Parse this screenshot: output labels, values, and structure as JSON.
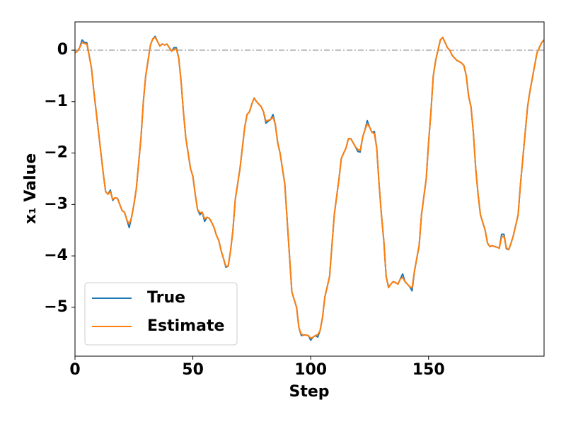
{
  "chart_data": {
    "type": "line",
    "xlabel": "Step",
    "ylabel": "x₁ Value",
    "xlim": [
      0,
      199
    ],
    "ylim": [
      -5.95,
      0.55
    ],
    "xticks": [
      0,
      50,
      100,
      150
    ],
    "yticks": [
      {
        "value": -5,
        "label": "−5"
      },
      {
        "value": -4,
        "label": "−4"
      },
      {
        "value": -3,
        "label": "−3"
      },
      {
        "value": -2,
        "label": "−2"
      },
      {
        "value": -1,
        "label": "−1"
      },
      0
    ],
    "hline": 0,
    "hline_color": "#808080",
    "legend": "lower left",
    "x": [
      0,
      1,
      2,
      3,
      4,
      5,
      6,
      7,
      8,
      9,
      10,
      11,
      12,
      13,
      14,
      15,
      16,
      17,
      18,
      19,
      20,
      21,
      22,
      23,
      24,
      25,
      26,
      27,
      28,
      29,
      30,
      31,
      32,
      33,
      34,
      35,
      36,
      37,
      38,
      39,
      40,
      41,
      42,
      43,
      44,
      45,
      46,
      47,
      48,
      49,
      50,
      51,
      52,
      53,
      54,
      55,
      56,
      57,
      58,
      59,
      60,
      61,
      62,
      63,
      64,
      65,
      66,
      67,
      68,
      69,
      70,
      71,
      72,
      73,
      74,
      75,
      76,
      77,
      78,
      79,
      80,
      81,
      82,
      83,
      84,
      85,
      86,
      87,
      88,
      89,
      90,
      91,
      92,
      93,
      94,
      95,
      96,
      97,
      98,
      99,
      100,
      101,
      102,
      103,
      104,
      105,
      106,
      107,
      108,
      109,
      110,
      111,
      112,
      113,
      114,
      115,
      116,
      117,
      118,
      119,
      120,
      121,
      122,
      123,
      124,
      125,
      126,
      127,
      128,
      129,
      130,
      131,
      132,
      133,
      134,
      135,
      136,
      137,
      138,
      139,
      140,
      141,
      142,
      143,
      144,
      145,
      146,
      147,
      148,
      149,
      150,
      151,
      152,
      153,
      154,
      155,
      156,
      157,
      158,
      159,
      160,
      161,
      162,
      163,
      164,
      165,
      166,
      167,
      168,
      169,
      170,
      171,
      172,
      173,
      174,
      175,
      176,
      177,
      178,
      179,
      180,
      181,
      182,
      183,
      184,
      185,
      186,
      187,
      188,
      189,
      190,
      191,
      192,
      193,
      194,
      195,
      196,
      197,
      198,
      199
    ],
    "series": [
      {
        "name": "True",
        "color": "#1f77b4",
        "values": [
          -0.05,
          -0.02,
          0.05,
          0.2,
          0.15,
          0.15,
          -0.1,
          -0.35,
          -0.8,
          -1.2,
          -1.6,
          -2.0,
          -2.4,
          -2.75,
          -2.8,
          -2.72,
          -2.92,
          -2.87,
          -2.88,
          -3.0,
          -3.12,
          -3.15,
          -3.3,
          -3.45,
          -3.25,
          -3.0,
          -2.7,
          -2.2,
          -1.7,
          -1.0,
          -0.5,
          -0.2,
          0.1,
          0.22,
          0.27,
          0.17,
          0.08,
          0.12,
          0.1,
          0.12,
          0.05,
          -0.02,
          0.05,
          0.05,
          -0.15,
          -0.6,
          -1.2,
          -1.7,
          -2.0,
          -2.3,
          -2.45,
          -2.8,
          -3.1,
          -3.2,
          -3.15,
          -3.33,
          -3.25,
          -3.27,
          -3.35,
          -3.45,
          -3.6,
          -3.7,
          -3.9,
          -4.05,
          -4.22,
          -4.2,
          -3.9,
          -3.5,
          -2.9,
          -2.6,
          -2.3,
          -1.9,
          -1.5,
          -1.25,
          -1.2,
          -1.05,
          -0.93,
          -1.0,
          -1.05,
          -1.1,
          -1.2,
          -1.42,
          -1.38,
          -1.35,
          -1.25,
          -1.45,
          -1.8,
          -2.0,
          -2.3,
          -2.6,
          -3.3,
          -4.0,
          -4.7,
          -4.85,
          -5.0,
          -5.4,
          -5.55,
          -5.54,
          -5.54,
          -5.55,
          -5.64,
          -5.58,
          -5.55,
          -5.58,
          -5.45,
          -5.2,
          -4.8,
          -4.6,
          -4.4,
          -3.8,
          -3.2,
          -2.85,
          -2.5,
          -2.1,
          -2.0,
          -1.9,
          -1.72,
          -1.72,
          -1.8,
          -1.88,
          -1.97,
          -1.98,
          -1.7,
          -1.55,
          -1.37,
          -1.5,
          -1.6,
          -1.58,
          -1.9,
          -2.6,
          -3.2,
          -3.7,
          -4.4,
          -4.6,
          -4.55,
          -4.5,
          -4.52,
          -4.55,
          -4.45,
          -4.35,
          -4.5,
          -4.55,
          -4.6,
          -4.68,
          -4.3,
          -4.05,
          -3.8,
          -3.2,
          -2.85,
          -2.5,
          -1.8,
          -1.2,
          -0.5,
          -0.2,
          0.0,
          0.2,
          0.25,
          0.15,
          0.05,
          0.0,
          -0.1,
          -0.15,
          -0.2,
          -0.22,
          -0.25,
          -0.3,
          -0.5,
          -0.9,
          -1.1,
          -1.6,
          -2.3,
          -2.8,
          -3.2,
          -3.35,
          -3.5,
          -3.75,
          -3.82,
          -3.8,
          -3.82,
          -3.83,
          -3.85,
          -3.58,
          -3.58,
          -3.86,
          -3.88,
          -3.75,
          -3.6,
          -3.4,
          -3.2,
          -2.6,
          -2.1,
          -1.6,
          -1.1,
          -0.8,
          -0.55,
          -0.3,
          -0.05,
          0.05,
          0.15,
          0.2
        ]
      },
      {
        "name": "Estimate",
        "color": "#ff7f0e",
        "values": [
          -0.05,
          -0.02,
          0.05,
          0.15,
          0.13,
          0.12,
          -0.1,
          -0.35,
          -0.8,
          -1.2,
          -1.6,
          -2.0,
          -2.4,
          -2.75,
          -2.8,
          -2.75,
          -2.9,
          -2.87,
          -2.88,
          -3.0,
          -3.12,
          -3.15,
          -3.3,
          -3.38,
          -3.25,
          -3.0,
          -2.7,
          -2.2,
          -1.7,
          -1.0,
          -0.5,
          -0.2,
          0.1,
          0.22,
          0.25,
          0.17,
          0.08,
          0.12,
          0.1,
          0.12,
          0.05,
          -0.02,
          0.02,
          0.02,
          -0.15,
          -0.6,
          -1.2,
          -1.7,
          -2.0,
          -2.3,
          -2.45,
          -2.8,
          -3.1,
          -3.16,
          -3.15,
          -3.28,
          -3.25,
          -3.27,
          -3.35,
          -3.45,
          -3.6,
          -3.7,
          -3.9,
          -4.05,
          -4.2,
          -4.2,
          -3.9,
          -3.5,
          -2.9,
          -2.6,
          -2.3,
          -1.9,
          -1.5,
          -1.25,
          -1.2,
          -1.05,
          -0.93,
          -1.0,
          -1.05,
          -1.1,
          -1.2,
          -1.38,
          -1.36,
          -1.35,
          -1.3,
          -1.45,
          -1.8,
          -2.0,
          -2.3,
          -2.6,
          -3.3,
          -4.0,
          -4.7,
          -4.85,
          -5.0,
          -5.4,
          -5.52,
          -5.54,
          -5.54,
          -5.55,
          -5.6,
          -5.58,
          -5.55,
          -5.53,
          -5.45,
          -5.2,
          -4.8,
          -4.6,
          -4.4,
          -3.8,
          -3.2,
          -2.85,
          -2.5,
          -2.1,
          -2.0,
          -1.9,
          -1.72,
          -1.72,
          -1.8,
          -1.88,
          -1.93,
          -1.95,
          -1.7,
          -1.55,
          -1.43,
          -1.5,
          -1.6,
          -1.62,
          -1.9,
          -2.6,
          -3.2,
          -3.7,
          -4.4,
          -4.62,
          -4.55,
          -4.5,
          -4.52,
          -4.55,
          -4.45,
          -4.42,
          -4.5,
          -4.55,
          -4.6,
          -4.62,
          -4.3,
          -4.05,
          -3.8,
          -3.2,
          -2.85,
          -2.5,
          -1.8,
          -1.2,
          -0.5,
          -0.2,
          0.0,
          0.2,
          0.25,
          0.15,
          0.05,
          0.0,
          -0.1,
          -0.15,
          -0.2,
          -0.22,
          -0.25,
          -0.3,
          -0.5,
          -0.9,
          -1.1,
          -1.6,
          -2.3,
          -2.8,
          -3.2,
          -3.35,
          -3.5,
          -3.75,
          -3.82,
          -3.8,
          -3.82,
          -3.83,
          -3.85,
          -3.63,
          -3.62,
          -3.84,
          -3.88,
          -3.75,
          -3.6,
          -3.4,
          -3.2,
          -2.6,
          -2.1,
          -1.6,
          -1.1,
          -0.8,
          -0.55,
          -0.3,
          -0.05,
          0.05,
          0.15,
          0.2
        ]
      }
    ]
  }
}
